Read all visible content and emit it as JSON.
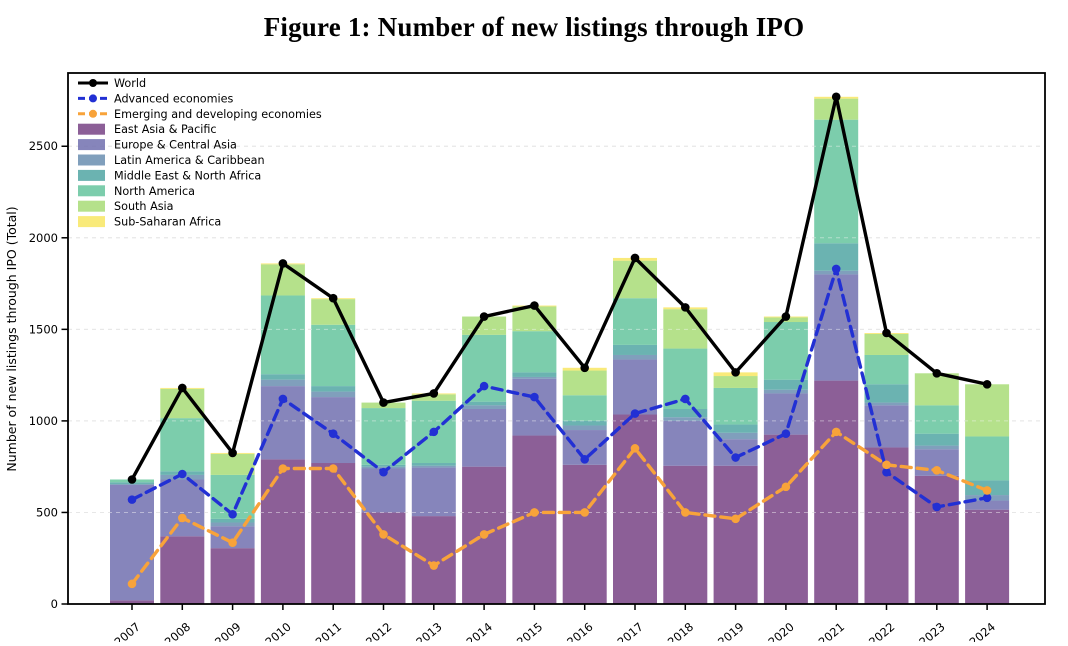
{
  "title": "Figure 1: Number of new listings through IPO",
  "chart_data": {
    "type": "bar",
    "subtype": "stacked-bars-with-line-overlays",
    "categories": [
      "2007",
      "2008",
      "2009",
      "2010",
      "2011",
      "2012",
      "2013",
      "2014",
      "2015",
      "2016",
      "2017",
      "2018",
      "2019",
      "2020",
      "2021",
      "2022",
      "2023",
      "2024"
    ],
    "ylabel": "Number of new listings through IPO (Total)",
    "xlabel": "",
    "yticks": [
      0,
      500,
      1000,
      1500,
      2000,
      2500
    ],
    "ylim": [
      0,
      2900
    ],
    "grid": "horizontal dashed",
    "legend_position": "upper left",
    "line_series": [
      {
        "name": "World",
        "style": "solid",
        "color": "#000000",
        "values": [
          680,
          1180,
          825,
          1860,
          1670,
          1100,
          1150,
          1570,
          1630,
          1290,
          1890,
          1620,
          1265,
          1570,
          2770,
          1480,
          1260,
          1200
        ]
      },
      {
        "name": "Advanced economies",
        "style": "dashed",
        "color": "#2230d4",
        "values": [
          570,
          710,
          490,
          1120,
          930,
          720,
          940,
          1190,
          1130,
          790,
          1040,
          1120,
          800,
          930,
          1830,
          720,
          530,
          580
        ]
      },
      {
        "name": "Emerging and developing economies",
        "style": "dashed",
        "color": "#f8a33a",
        "values": [
          110,
          470,
          335,
          740,
          740,
          380,
          210,
          380,
          500,
          500,
          850,
          500,
          465,
          640,
          940,
          760,
          730,
          620
        ]
      }
    ],
    "bar_series": [
      {
        "name": "East Asia & Pacific",
        "color": "#7b4788",
        "values": [
          20,
          370,
          305,
          790,
          770,
          500,
          480,
          750,
          920,
          760,
          1035,
          755,
          755,
          925,
          1220,
          855,
          700,
          515
        ]
      },
      {
        "name": "Europe & Central Asia",
        "color": "#7473b1",
        "values": [
          630,
          310,
          120,
          400,
          360,
          240,
          265,
          315,
          310,
          190,
          300,
          245,
          145,
          225,
          580,
          230,
          145,
          50
        ]
      },
      {
        "name": "Latin America & Caribbean",
        "color": "#6d91b2",
        "values": [
          5,
          25,
          20,
          35,
          30,
          10,
          10,
          20,
          10,
          25,
          25,
          20,
          35,
          20,
          20,
          15,
          20,
          30
        ]
      },
      {
        "name": "Middle East & North Africa",
        "color": "#55a8a5",
        "values": [
          10,
          20,
          20,
          30,
          30,
          10,
          15,
          20,
          25,
          25,
          55,
          45,
          45,
          55,
          150,
          100,
          65,
          80
        ]
      },
      {
        "name": "North America",
        "color": "#69c5a0",
        "values": [
          15,
          290,
          240,
          430,
          335,
          310,
          340,
          365,
          225,
          140,
          255,
          330,
          200,
          315,
          675,
          160,
          155,
          240
        ]
      },
      {
        "name": "South Asia",
        "color": "#aadc7a",
        "values": [
          0,
          160,
          115,
          170,
          140,
          30,
          35,
          100,
          135,
          135,
          205,
          215,
          65,
          25,
          115,
          115,
          175,
          285
        ]
      },
      {
        "name": "Sub-Saharan Africa",
        "color": "#f8e766",
        "values": [
          0,
          5,
          5,
          5,
          5,
          0,
          5,
          0,
          5,
          15,
          15,
          10,
          20,
          5,
          10,
          5,
          0,
          0
        ]
      }
    ],
    "frame_color": "#000000",
    "gridline_color": "#d4d4d4"
  }
}
